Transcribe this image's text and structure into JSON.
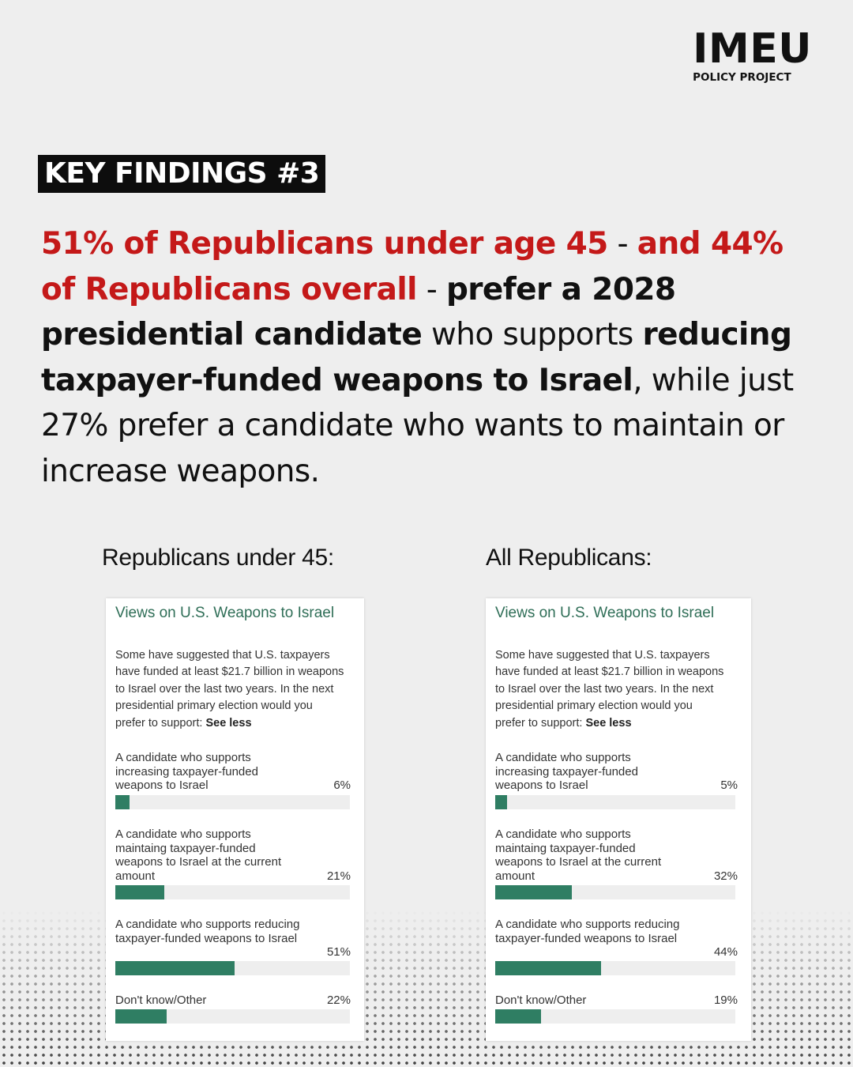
{
  "logo": {
    "main": "IMEU",
    "sub": "POLICY PROJECT"
  },
  "badge": "KEY FINDINGS #3",
  "headline": {
    "s1": "51% of Republicans under age 45",
    "s2": " - ",
    "s3": "and 44% of Republicans overall",
    "s4": " - ",
    "s5": "prefer a 2028 presidential candidate",
    "s6": " who supports ",
    "s7": "reducing taxpayer-funded weapons to Israel",
    "s8": ", while just 27% prefer a candidate who wants to maintain or increase weapons."
  },
  "colors": {
    "accent_red": "#c41919",
    "bar_green": "#2f7e63",
    "title_green": "#2f6e57"
  },
  "chart_data": [
    {
      "type": "bar",
      "panel_label": "Republicans under 45:",
      "title": "Views on U.S. Weapons to Israel",
      "question": "Some have suggested that U.S. taxpayers have funded at least $21.7 billion in weapons to Israel over the last two years. In the next presidential primary election would you prefer to support:",
      "see_less": "See less",
      "categories": [
        "A candidate who supports increasing taxpayer-funded weapons to Israel",
        "A candidate who supports maintaing taxpayer-funded weapons to Israel at the current amount",
        "A candidate who supports reducing taxpayer-funded weapons to Israel",
        "Don't know/Other"
      ],
      "values": [
        6,
        21,
        51,
        22
      ],
      "value_labels": [
        "6%",
        "21%",
        "51%",
        "22%"
      ],
      "ylim": [
        0,
        100
      ]
    },
    {
      "type": "bar",
      "panel_label": "All Republicans:",
      "title": "Views on U.S. Weapons to Israel",
      "question": "Some have suggested that U.S. taxpayers have funded at least $21.7 billion in weapons to Israel over the last two years. In the next presidential primary election would you prefer to support:",
      "see_less": "See less",
      "categories": [
        "A candidate who supports increasing taxpayer-funded weapons to Israel",
        "A candidate who supports maintaing taxpayer-funded weapons to Israel at the current amount",
        "A candidate who supports reducing taxpayer-funded weapons to Israel",
        "Don't know/Other"
      ],
      "values": [
        5,
        32,
        44,
        19
      ],
      "value_labels": [
        "5%",
        "32%",
        "44%",
        "19%"
      ],
      "ylim": [
        0,
        100
      ]
    }
  ]
}
